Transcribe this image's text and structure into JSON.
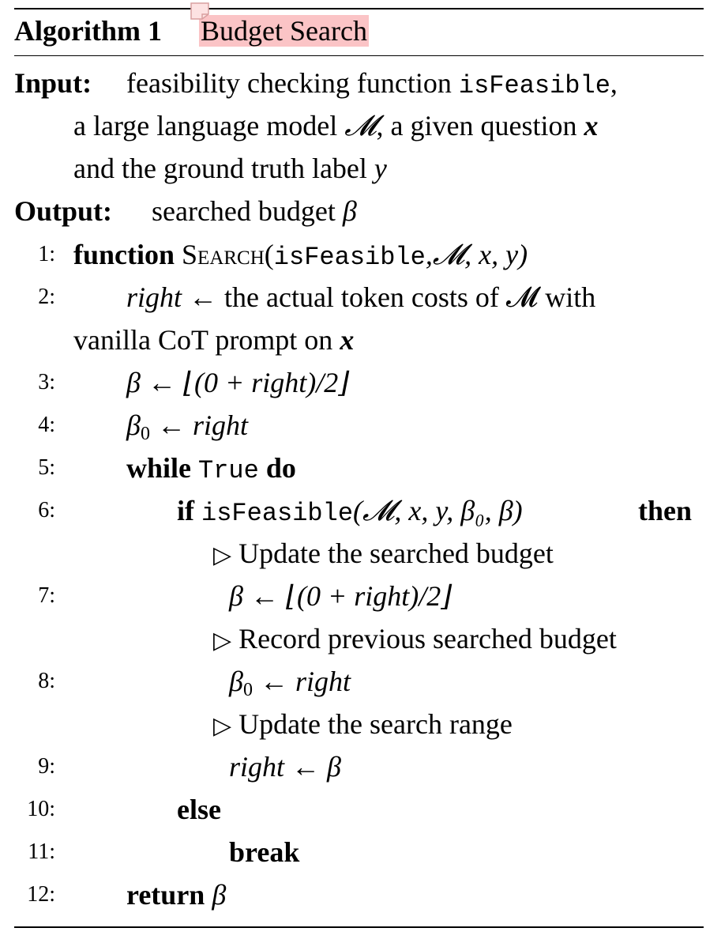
{
  "algorithm": {
    "label": "Algorithm 1",
    "name": "Budget Search"
  },
  "input": {
    "label": "Input:",
    "line1_a": "feasibility checking function",
    "fn": "isFeasible",
    "line1_b": ",",
    "line2_a": "a large language model",
    "model": "𝓜",
    "line2_b": ", a given question",
    "question": "x",
    "line3_a": "and the ground truth label",
    "label_var": "y"
  },
  "output": {
    "label": "Output:",
    "text": "searched budget",
    "var": "β"
  },
  "steps": {
    "n1": "1:",
    "n2": "2:",
    "n3": "3:",
    "n4": "4:",
    "n5": "5:",
    "n6": "6:",
    "n7": "7:",
    "n8": "8:",
    "n9": "9:",
    "n10": "10:",
    "n11": "11:",
    "n12": "12:",
    "kw_function": "function",
    "search_name": "Search",
    "search_args_open": "(",
    "search_fn": "isFeasible",
    "search_args_rest": ",𝓜, x, y)",
    "right": "right",
    "arrow": "←",
    "step2_text": "the actual token costs of 𝓜 with",
    "step2_cont": "vanilla CoT prompt on",
    "step2_x": "x",
    "beta": "β",
    "floor_expr": "⌊(0 + right)/2⌋",
    "beta0": "β",
    "sub0": "0",
    "kw_while": "while",
    "true_kw": "True",
    "kw_do": "do",
    "kw_if": "if",
    "if_fn": "isFeasible",
    "if_args": "(𝓜, x, y, β₀, β)",
    "kw_then": "then",
    "comment_tri": "▷",
    "comment1": "Update the searched budget",
    "comment2": "Record previous searched budget",
    "comment3": "Update the search range",
    "kw_else": "else",
    "kw_break": "break",
    "kw_return": "return"
  }
}
